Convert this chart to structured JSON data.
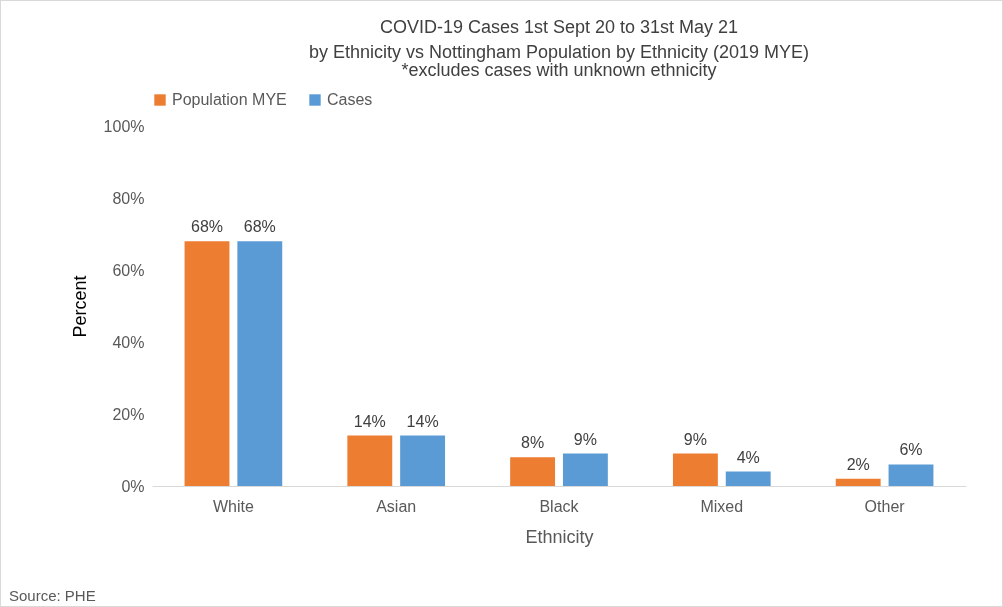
{
  "chart_data": {
    "type": "bar",
    "title": "COVID-19 Cases 1st Sept 20 to 31st May 21\nby Ethnicity vs Nottingham Population by Ethnicity (2019 MYE)",
    "subtitle": "*excludes cases with unknown ethnicity",
    "xlabel": "Ethnicity",
    "ylabel": "Percent",
    "categories": [
      "White",
      "Asian",
      "Black",
      "Mixed",
      "Other"
    ],
    "series": [
      {
        "name": "Population MYE",
        "color": "#ed7d31",
        "values": [
          68,
          14,
          8,
          9,
          2
        ],
        "value_labels": [
          "68%",
          "14%",
          "8%",
          "9%",
          "2%"
        ]
      },
      {
        "name": "Cases",
        "color": "#5b9bd5",
        "values": [
          68,
          14,
          9,
          4,
          6
        ],
        "value_labels": [
          "68%",
          "14%",
          "9%",
          "4%",
          "6%"
        ]
      }
    ],
    "ylim": [
      0,
      100
    ],
    "yticks": [
      {
        "value": 0,
        "label": "0%"
      },
      {
        "value": 20,
        "label": "20%"
      },
      {
        "value": 40,
        "label": "40%"
      },
      {
        "value": 60,
        "label": "60%"
      },
      {
        "value": 80,
        "label": "80%"
      },
      {
        "value": 100,
        "label": "100%"
      }
    ],
    "legend": "top",
    "annotations": [
      "Source: PHE"
    ]
  }
}
